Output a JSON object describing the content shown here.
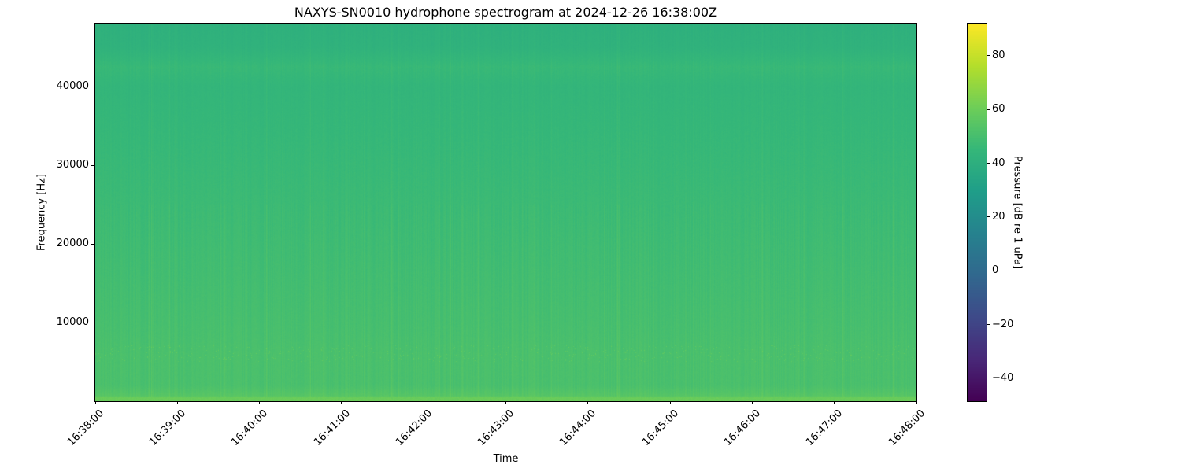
{
  "chart_data": {
    "type": "heatmap",
    "title": "NAXYS-SN0010 hydrophone spectrogram at 2024-12-26 16:38:00Z",
    "xlabel": "Time",
    "ylabel": "Frequency [Hz]",
    "x_ticks": [
      "16:38:00",
      "16:39:00",
      "16:40:00",
      "16:41:00",
      "16:42:00",
      "16:43:00",
      "16:44:00",
      "16:45:00",
      "16:46:00",
      "16:47:00",
      "16:48:00"
    ],
    "xlim": [
      "16:38:00",
      "16:48:00"
    ],
    "y_ticks": [
      10000,
      20000,
      30000,
      40000
    ],
    "ylim": [
      0,
      48000
    ],
    "colormap": "viridis",
    "colorbar": {
      "label": "Pressure [dB re 1 uPa]",
      "ticks": [
        -40,
        -20,
        0,
        20,
        40,
        60,
        80
      ],
      "range": [
        -48.5,
        92
      ]
    },
    "mean_level_by_frequency": {
      "frequency_hz": [
        0,
        500,
        2000,
        6000,
        10000,
        20000,
        30000,
        40000,
        42500,
        45000,
        48000
      ],
      "level_db": [
        60,
        55,
        51,
        51,
        50,
        48,
        46,
        44,
        46,
        42,
        41
      ]
    },
    "grid": false
  }
}
